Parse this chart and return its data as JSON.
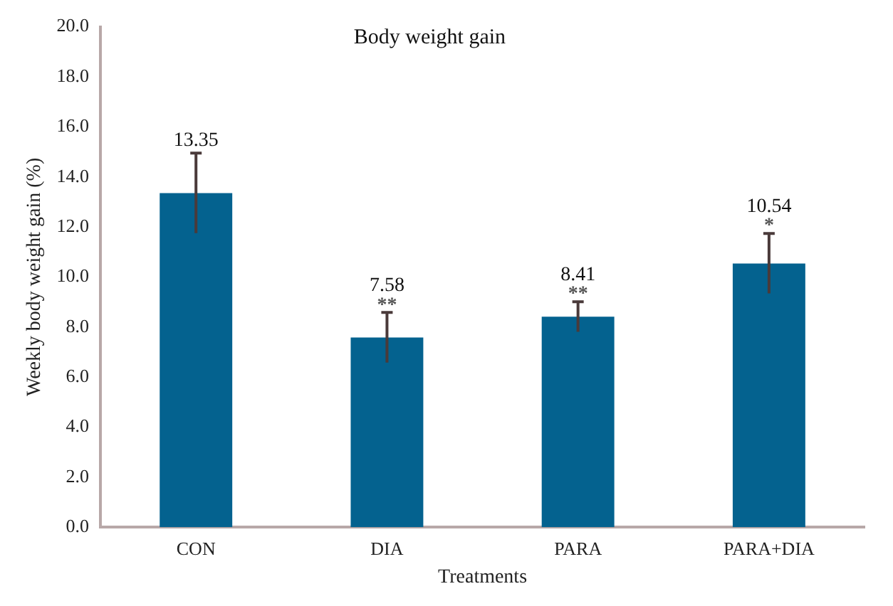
{
  "chart_data": {
    "type": "bar",
    "title": "Body weight gain",
    "xlabel": "Treatments",
    "ylabel": "Weekly body weight gain (%)",
    "categories": [
      "CON",
      "DIA",
      "PARA",
      "PARA+DIA"
    ],
    "values": [
      13.35,
      7.58,
      8.41,
      10.54
    ],
    "color": "#04628f",
    "errors": [
      1.6,
      1.0,
      0.6,
      1.2
    ],
    "data_labels": true,
    "ylim": [
      0,
      20
    ],
    "yticks": [
      {
        "value": 0,
        "label": "0.0"
      },
      {
        "value": 2,
        "label": "2.0"
      },
      {
        "value": 4,
        "label": "4.0"
      },
      {
        "value": 6,
        "label": "6.0"
      },
      {
        "value": 8,
        "label": "8.0"
      },
      {
        "value": 10,
        "label": "10.0"
      },
      {
        "value": 12,
        "label": "12.0"
      },
      {
        "value": 14,
        "label": "14.0"
      },
      {
        "value": 16,
        "label": "16.0"
      },
      {
        "value": 18,
        "label": "18.0"
      },
      {
        "value": 20,
        "label": "20.0"
      }
    ],
    "annotations": [
      {
        "text": "**",
        "x": "DIA",
        "y": 8.58
      },
      {
        "text": "**",
        "x": "PARA",
        "y": 9.01
      },
      {
        "text": "*",
        "x": "PARA+DIA",
        "y": 11.74
      }
    ],
    "grid": false,
    "legend": false
  }
}
